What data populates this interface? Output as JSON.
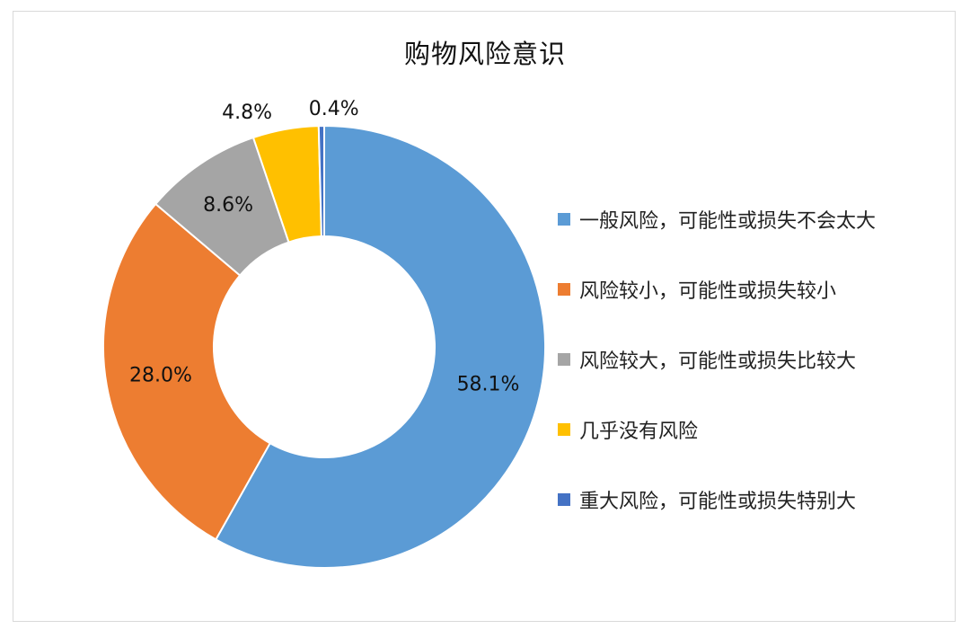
{
  "chart_data": {
    "type": "pie",
    "donut": true,
    "title": "购物风险意识",
    "legend_position": "right",
    "series": [
      {
        "name": "一般风险，可能性或损失不会太大",
        "value": 58.1,
        "label": "58.1%",
        "color": "#5b9bd5"
      },
      {
        "name": "风险较小，可能性或损失较小",
        "value": 28.0,
        "label": "28.0%",
        "color": "#ed7d31"
      },
      {
        "name": "风险较大，可能性或损失比较大",
        "value": 8.6,
        "label": "8.6%",
        "color": "#a5a5a5"
      },
      {
        "name": "几乎没有风险",
        "value": 4.8,
        "label": "4.8%",
        "color": "#ffc000"
      },
      {
        "name": "重大风险，可能性或损失特别大",
        "value": 0.4,
        "label": "0.4%",
        "color": "#4472c4"
      }
    ]
  }
}
